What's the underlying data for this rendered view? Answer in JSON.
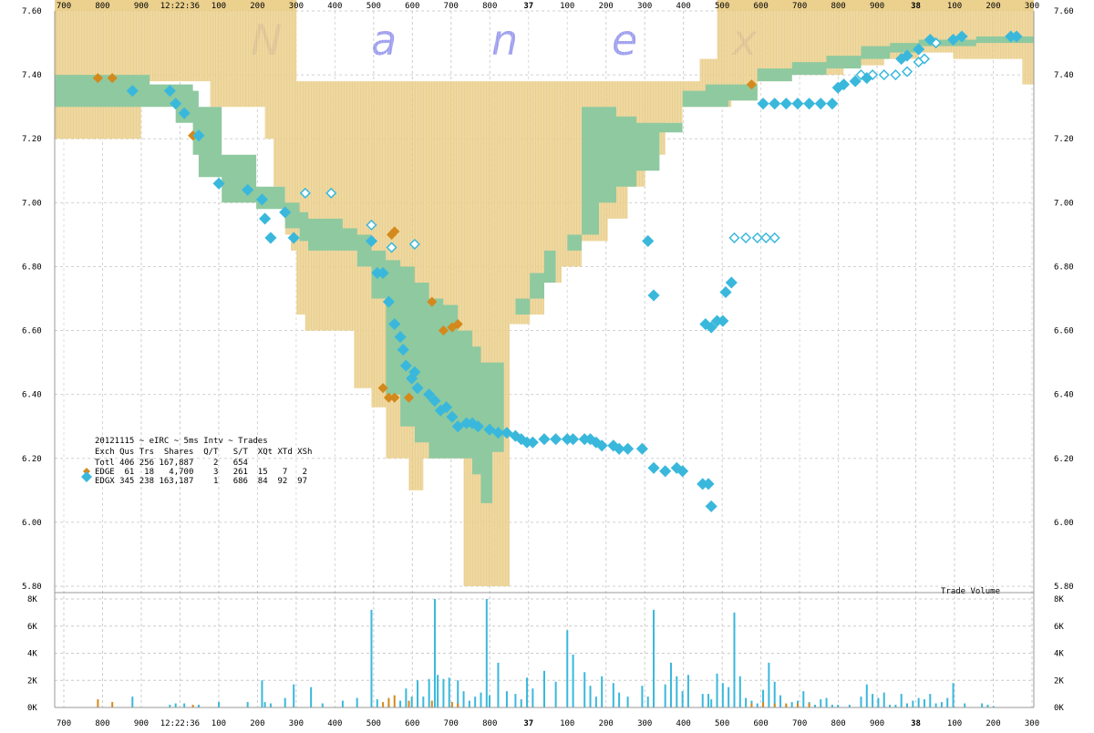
{
  "watermark": [
    "N",
    "a",
    "n",
    "e",
    "x"
  ],
  "top_ticks": [
    "700",
    "800",
    "900",
    "12:22:36",
    "100",
    "200",
    "300",
    "400",
    "500",
    "600",
    "700",
    "800",
    "37",
    "100",
    "200",
    "300",
    "400",
    "500",
    "600",
    "700",
    "800",
    "900",
    "38",
    "100",
    "200",
    "300"
  ],
  "bottom_ticks": [
    "700",
    "800",
    "900",
    "12:22:36",
    "100",
    "200",
    "300",
    "400",
    "500",
    "600",
    "700",
    "800",
    "37",
    "100",
    "200",
    "300",
    "400",
    "500",
    "600",
    "700",
    "800",
    "900",
    "38",
    "100",
    "200",
    "300"
  ],
  "price_ticks": [
    "7.60",
    "7.40",
    "7.20",
    "7.00",
    "6.80",
    "6.60",
    "6.40",
    "6.20",
    "6.00",
    "5.80"
  ],
  "volume_ticks": [
    "8K",
    "6K",
    "4K",
    "2K",
    "0K"
  ],
  "volume_label": "Trade Volume",
  "legend": {
    "title": "20121115 ~ eIRC ~ 5ms Intv ~ Trades",
    "header": "Exch Qus Trs  Shares  Q/T   S/T  XQt XTd XSh",
    "total": "Totl 406 256 167,887    2   654",
    "edge": "EDGE  61  18   4,700    3   261  15   7   2",
    "edgx": "EDGX 345 238 163,187    1   686  84  92  97"
  },
  "colors": {
    "nbbo": "#e8c87a",
    "spread": "#8fc9a0",
    "edge": "#d4891c",
    "edgx": "#3ab8dc",
    "wm": "#9999ee"
  },
  "chart_data": {
    "type": "scatter",
    "x_unit": "ms after 12:22:35.700",
    "ylim": [
      5.8,
      7.6
    ],
    "volume_ylim": [
      0,
      8000
    ],
    "nbbo_band": [
      [
        0,
        7.65,
        7.2
      ],
      [
        250,
        7.65,
        7.2
      ],
      [
        300,
        7.65,
        7.38
      ],
      [
        530,
        7.65,
        7.38
      ],
      [
        540,
        7.65,
        7.3
      ],
      [
        730,
        7.65,
        7.2
      ],
      [
        760,
        7.65,
        7.05
      ],
      [
        800,
        7.65,
        6.9
      ],
      [
        820,
        7.65,
        6.85
      ],
      [
        840,
        7.38,
        6.65
      ],
      [
        870,
        7.38,
        6.6
      ],
      [
        950,
        7.38,
        6.6
      ],
      [
        1040,
        7.38,
        6.42
      ],
      [
        1100,
        7.38,
        6.36
      ],
      [
        1150,
        7.38,
        6.2
      ],
      [
        1230,
        7.38,
        6.1
      ],
      [
        1280,
        7.38,
        6.2
      ],
      [
        1380,
        7.38,
        6.2
      ],
      [
        1420,
        7.38,
        5.8
      ],
      [
        1540,
        7.38,
        5.8
      ],
      [
        1580,
        7.38,
        6.62
      ],
      [
        1650,
        7.38,
        6.65
      ],
      [
        1700,
        7.38,
        6.75
      ],
      [
        1760,
        7.38,
        6.8
      ],
      [
        1830,
        7.38,
        6.88
      ],
      [
        1920,
        7.38,
        6.95
      ],
      [
        1990,
        7.38,
        7.05
      ],
      [
        2050,
        7.38,
        7.15
      ],
      [
        2120,
        7.38,
        7.25
      ],
      [
        2180,
        7.38,
        7.3
      ],
      [
        2240,
        7.45,
        7.3
      ],
      [
        2280,
        7.45,
        7.3
      ],
      [
        2300,
        7.65,
        7.3
      ],
      [
        2350,
        7.65,
        7.32
      ],
      [
        2440,
        7.65,
        7.38
      ],
      [
        2560,
        7.65,
        7.4
      ],
      [
        2740,
        7.65,
        7.43
      ],
      [
        2880,
        7.65,
        7.45
      ],
      [
        3000,
        7.65,
        7.47
      ],
      [
        3120,
        7.68,
        7.45
      ],
      [
        3360,
        7.68,
        7.37
      ],
      [
        3400,
        7.68,
        7.37
      ]
    ],
    "spread_band": [
      [
        0,
        7.4,
        7.3
      ],
      [
        300,
        7.4,
        7.3
      ],
      [
        330,
        7.37,
        7.3
      ],
      [
        420,
        7.37,
        7.25
      ],
      [
        480,
        7.35,
        7.15
      ],
      [
        500,
        7.3,
        7.08
      ],
      [
        580,
        7.15,
        7.0
      ],
      [
        700,
        7.05,
        6.98
      ],
      [
        800,
        7.0,
        6.92
      ],
      [
        850,
        6.97,
        6.88
      ],
      [
        880,
        6.95,
        6.85
      ],
      [
        1000,
        6.92,
        6.85
      ],
      [
        1050,
        6.9,
        6.8
      ],
      [
        1100,
        6.85,
        6.7
      ],
      [
        1150,
        6.82,
        6.4
      ],
      [
        1200,
        6.8,
        6.3
      ],
      [
        1250,
        6.75,
        6.25
      ],
      [
        1300,
        6.7,
        6.2
      ],
      [
        1350,
        6.68,
        6.2
      ],
      [
        1400,
        6.6,
        6.2
      ],
      [
        1450,
        6.55,
        6.15
      ],
      [
        1480,
        6.5,
        6.06
      ],
      [
        1520,
        6.5,
        6.22
      ],
      [
        1560,
        6.62,
        6.62
      ],
      [
        1600,
        6.7,
        6.65
      ],
      [
        1650,
        6.78,
        6.7
      ],
      [
        1700,
        6.85,
        6.75
      ],
      [
        1740,
        6.85,
        6.85
      ],
      [
        1780,
        6.85,
        6.9
      ],
      [
        1830,
        7.3,
        6.9
      ],
      [
        1890,
        7.3,
        7.0
      ],
      [
        1950,
        7.27,
        7.05
      ],
      [
        2020,
        7.25,
        7.1
      ],
      [
        2100,
        7.22,
        7.25
      ],
      [
        2180,
        7.35,
        7.3
      ],
      [
        2260,
        7.37,
        7.3
      ],
      [
        2340,
        7.37,
        7.32
      ],
      [
        2440,
        7.42,
        7.38
      ],
      [
        2560,
        7.44,
        7.4
      ],
      [
        2680,
        7.46,
        7.42
      ],
      [
        2800,
        7.49,
        7.45
      ],
      [
        2900,
        7.5,
        7.47
      ],
      [
        3000,
        7.51,
        7.49
      ],
      [
        3200,
        7.52,
        7.5
      ],
      [
        3400,
        7.52,
        7.51
      ]
    ],
    "edge_trades": [
      [
        150,
        7.39
      ],
      [
        200,
        7.39
      ],
      [
        480,
        7.21
      ],
      [
        1140,
        6.42
      ],
      [
        1160,
        6.39
      ],
      [
        1180,
        6.39
      ],
      [
        1230,
        6.39
      ],
      [
        1310,
        6.69
      ],
      [
        1380,
        6.61
      ],
      [
        1400,
        6.62
      ],
      [
        1170,
        6.9
      ],
      [
        1180,
        6.91
      ],
      [
        2420,
        7.37
      ],
      [
        1350,
        6.6
      ]
    ],
    "edgx_trades": [
      [
        270,
        7.35
      ],
      [
        400,
        7.35
      ],
      [
        420,
        7.31
      ],
      [
        450,
        7.28
      ],
      [
        500,
        7.21
      ],
      [
        570,
        7.06
      ],
      [
        720,
        7.01
      ],
      [
        670,
        7.04
      ],
      [
        730,
        6.95
      ],
      [
        750,
        6.89
      ],
      [
        800,
        6.97
      ],
      [
        830,
        6.89
      ],
      [
        1100,
        6.88
      ],
      [
        1120,
        6.78
      ],
      [
        1140,
        6.78
      ],
      [
        1160,
        6.69
      ],
      [
        1180,
        6.62
      ],
      [
        1200,
        6.58
      ],
      [
        1210,
        6.54
      ],
      [
        1220,
        6.49
      ],
      [
        1240,
        6.45
      ],
      [
        1250,
        6.47
      ],
      [
        1260,
        6.42
      ],
      [
        1300,
        6.4
      ],
      [
        1320,
        6.38
      ],
      [
        1340,
        6.35
      ],
      [
        1360,
        6.36
      ],
      [
        1380,
        6.33
      ],
      [
        1400,
        6.3
      ],
      [
        1430,
        6.31
      ],
      [
        1450,
        6.31
      ],
      [
        1470,
        6.3
      ],
      [
        1510,
        6.29
      ],
      [
        1540,
        6.28
      ],
      [
        1570,
        6.28
      ],
      [
        1600,
        6.27
      ],
      [
        1620,
        6.26
      ],
      [
        1640,
        6.25
      ],
      [
        1660,
        6.25
      ],
      [
        1700,
        6.26
      ],
      [
        1740,
        6.26
      ],
      [
        1780,
        6.26
      ],
      [
        1800,
        6.26
      ],
      [
        1840,
        6.26
      ],
      [
        1860,
        6.26
      ],
      [
        1880,
        6.25
      ],
      [
        1900,
        6.24
      ],
      [
        1940,
        6.24
      ],
      [
        1960,
        6.23
      ],
      [
        1990,
        6.23
      ],
      [
        2040,
        6.23
      ],
      [
        2080,
        6.17
      ],
      [
        2120,
        6.16
      ],
      [
        2160,
        6.17
      ],
      [
        2180,
        6.16
      ],
      [
        2250,
        6.12
      ],
      [
        2270,
        6.12
      ],
      [
        2280,
        6.05
      ],
      [
        2060,
        6.88
      ],
      [
        2080,
        6.71
      ],
      [
        2260,
        6.62
      ],
      [
        2280,
        6.61
      ],
      [
        2300,
        6.63
      ],
      [
        2320,
        6.63
      ],
      [
        2330,
        6.72
      ],
      [
        2350,
        6.75
      ],
      [
        2460,
        7.31
      ],
      [
        2500,
        7.31
      ],
      [
        2540,
        7.31
      ],
      [
        2580,
        7.31
      ],
      [
        2620,
        7.31
      ],
      [
        2660,
        7.31
      ],
      [
        2700,
        7.31
      ],
      [
        2720,
        7.36
      ],
      [
        2740,
        7.37
      ],
      [
        2780,
        7.38
      ],
      [
        2820,
        7.39
      ],
      [
        2940,
        7.45
      ],
      [
        2960,
        7.46
      ],
      [
        3040,
        7.51
      ],
      [
        3120,
        7.51
      ],
      [
        3150,
        7.52
      ],
      [
        3320,
        7.52
      ],
      [
        3340,
        7.52
      ],
      [
        3000,
        7.48
      ]
    ],
    "quote_markers": [
      [
        870,
        7.03
      ],
      [
        960,
        7.03
      ],
      [
        1100,
        6.93
      ],
      [
        1170,
        6.86
      ],
      [
        1250,
        6.87
      ],
      [
        2360,
        6.89
      ],
      [
        2400,
        6.89
      ],
      [
        2440,
        6.89
      ],
      [
        2470,
        6.89
      ],
      [
        2500,
        6.89
      ],
      [
        2800,
        7.4
      ],
      [
        2840,
        7.4
      ],
      [
        2880,
        7.4
      ],
      [
        2920,
        7.4
      ],
      [
        2960,
        7.41
      ],
      [
        3000,
        7.44
      ],
      [
        3020,
        7.45
      ],
      [
        3060,
        7.5
      ]
    ],
    "volume_edge": [
      [
        150,
        600
      ],
      [
        200,
        400
      ],
      [
        480,
        200
      ],
      [
        1140,
        400
      ],
      [
        1160,
        700
      ],
      [
        1180,
        900
      ],
      [
        1230,
        500
      ],
      [
        1310,
        500
      ],
      [
        1380,
        400
      ],
      [
        1400,
        300
      ],
      [
        2420,
        300
      ],
      [
        2460,
        400
      ],
      [
        2500,
        300
      ],
      [
        2540,
        300
      ],
      [
        2580,
        300
      ],
      [
        2620,
        300
      ]
    ],
    "volume_edgx": [
      [
        270,
        800
      ],
      [
        400,
        200
      ],
      [
        420,
        300
      ],
      [
        450,
        300
      ],
      [
        500,
        200
      ],
      [
        570,
        400
      ],
      [
        720,
        2000
      ],
      [
        670,
        400
      ],
      [
        730,
        400
      ],
      [
        750,
        300
      ],
      [
        800,
        700
      ],
      [
        830,
        1700
      ],
      [
        890,
        1500
      ],
      [
        930,
        300
      ],
      [
        1000,
        500
      ],
      [
        1050,
        700
      ],
      [
        1100,
        7200
      ],
      [
        1120,
        600
      ],
      [
        1160,
        300
      ],
      [
        1200,
        500
      ],
      [
        1220,
        1400
      ],
      [
        1240,
        800
      ],
      [
        1260,
        2000
      ],
      [
        1280,
        800
      ],
      [
        1300,
        2100
      ],
      [
        1320,
        8000
      ],
      [
        1330,
        2400
      ],
      [
        1350,
        2100
      ],
      [
        1370,
        2200
      ],
      [
        1400,
        2000
      ],
      [
        1420,
        1200
      ],
      [
        1440,
        500
      ],
      [
        1460,
        800
      ],
      [
        1480,
        1100
      ],
      [
        1500,
        8000
      ],
      [
        1510,
        900
      ],
      [
        1540,
        3300
      ],
      [
        1570,
        1200
      ],
      [
        1600,
        1000
      ],
      [
        1620,
        600
      ],
      [
        1640,
        2200
      ],
      [
        1660,
        1400
      ],
      [
        1700,
        2700
      ],
      [
        1740,
        1900
      ],
      [
        1780,
        5700
      ],
      [
        1800,
        3900
      ],
      [
        1840,
        2600
      ],
      [
        1860,
        1600
      ],
      [
        1880,
        800
      ],
      [
        1900,
        2300
      ],
      [
        1940,
        1800
      ],
      [
        1960,
        1100
      ],
      [
        1990,
        800
      ],
      [
        2040,
        1600
      ],
      [
        2060,
        800
      ],
      [
        2080,
        7200
      ],
      [
        2120,
        1700
      ],
      [
        2140,
        3300
      ],
      [
        2160,
        2300
      ],
      [
        2180,
        1200
      ],
      [
        2200,
        2400
      ],
      [
        2250,
        1000
      ],
      [
        2270,
        1000
      ],
      [
        2280,
        600
      ],
      [
        2300,
        2500
      ],
      [
        2320,
        1800
      ],
      [
        2340,
        1500
      ],
      [
        2360,
        7000
      ],
      [
        2380,
        2300
      ],
      [
        2400,
        700
      ],
      [
        2420,
        500
      ],
      [
        2440,
        300
      ],
      [
        2460,
        1300
      ],
      [
        2480,
        3300
      ],
      [
        2500,
        1900
      ],
      [
        2520,
        900
      ],
      [
        2540,
        200
      ],
      [
        2560,
        400
      ],
      [
        2580,
        500
      ],
      [
        2600,
        1200
      ],
      [
        2620,
        400
      ],
      [
        2640,
        200
      ],
      [
        2660,
        600
      ],
      [
        2680,
        700
      ],
      [
        2700,
        200
      ],
      [
        2720,
        200
      ],
      [
        2760,
        200
      ],
      [
        2800,
        800
      ],
      [
        2820,
        1700
      ],
      [
        2840,
        1000
      ],
      [
        2860,
        700
      ],
      [
        2880,
        1100
      ],
      [
        2900,
        200
      ],
      [
        2920,
        200
      ],
      [
        2940,
        1000
      ],
      [
        2960,
        300
      ],
      [
        2980,
        500
      ],
      [
        3000,
        700
      ],
      [
        3020,
        600
      ],
      [
        3040,
        1000
      ],
      [
        3060,
        300
      ],
      [
        3080,
        400
      ],
      [
        3100,
        700
      ],
      [
        3120,
        1800
      ],
      [
        3160,
        300
      ],
      [
        3220,
        300
      ],
      [
        3240,
        200
      ],
      [
        3260,
        100
      ]
    ]
  }
}
